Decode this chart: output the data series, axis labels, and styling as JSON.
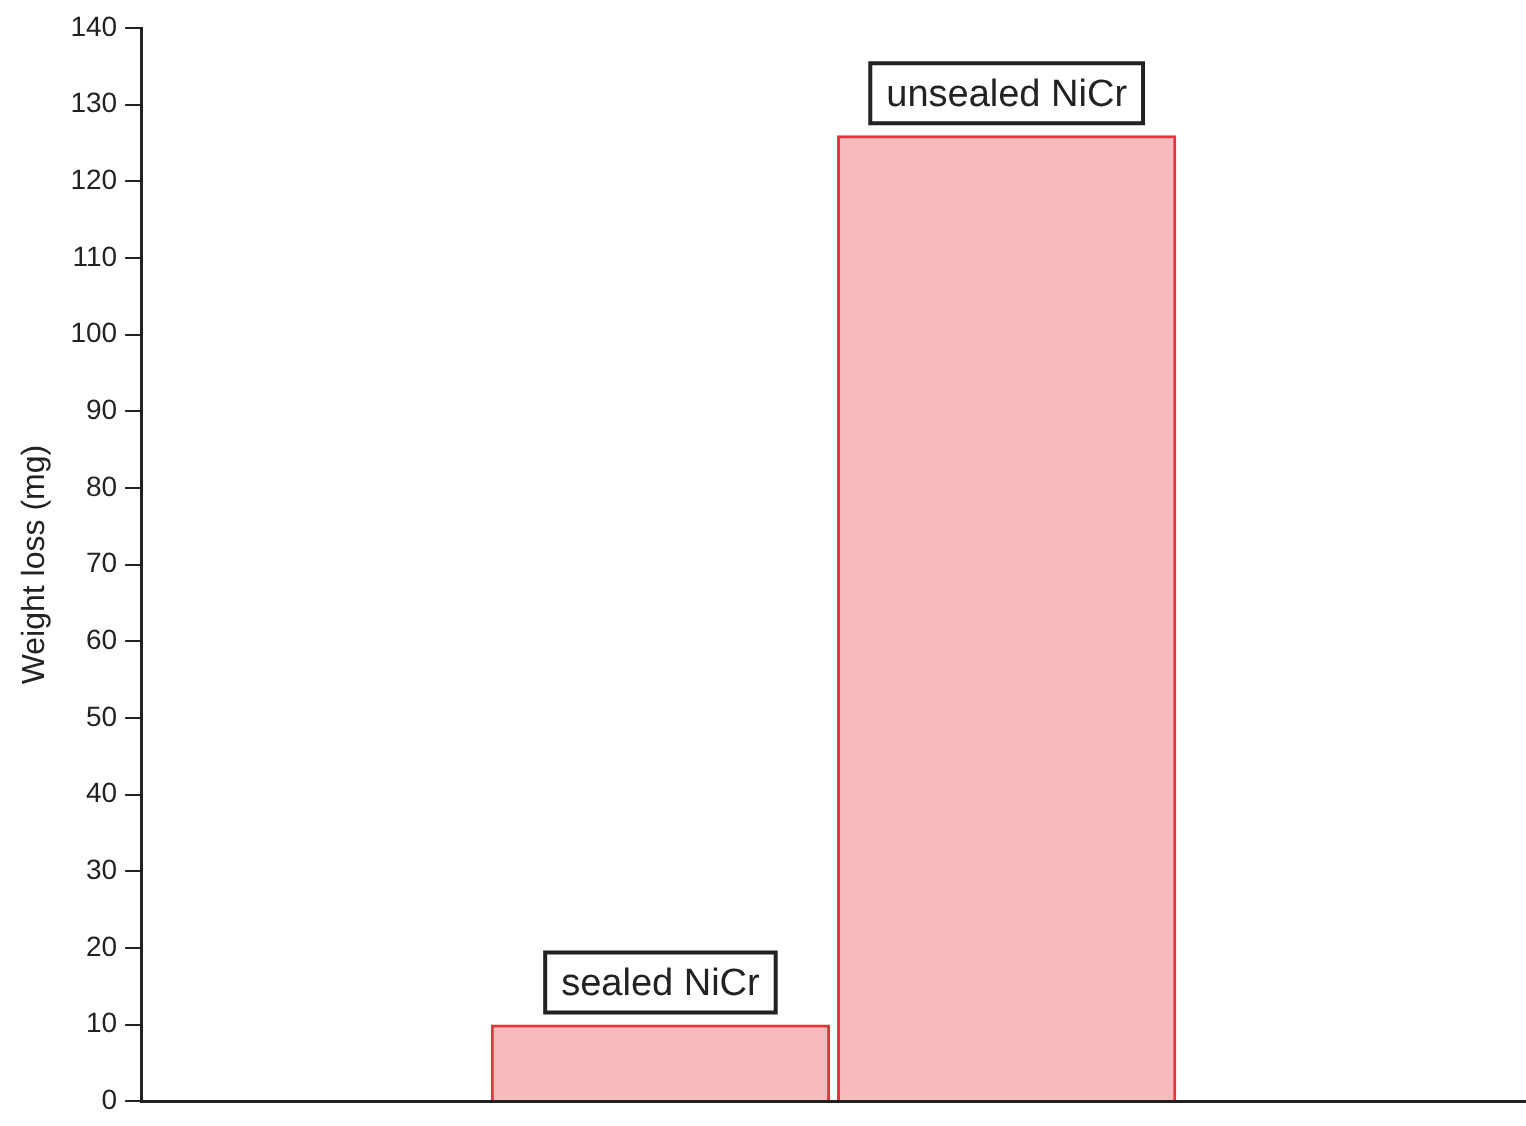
{
  "chart_data": {
    "type": "bar",
    "categories": [
      "sealed NiCr",
      "unsealed NiCr"
    ],
    "values": [
      10,
      126
    ],
    "color": "#e8333c",
    "ylabel": "Weight loss (mg)",
    "ylim": [
      0,
      140
    ],
    "yticks": [
      0,
      10,
      20,
      30,
      40,
      50,
      60,
      70,
      80,
      90,
      100,
      110,
      120,
      130,
      140
    ],
    "grid": false,
    "legend": false
  }
}
